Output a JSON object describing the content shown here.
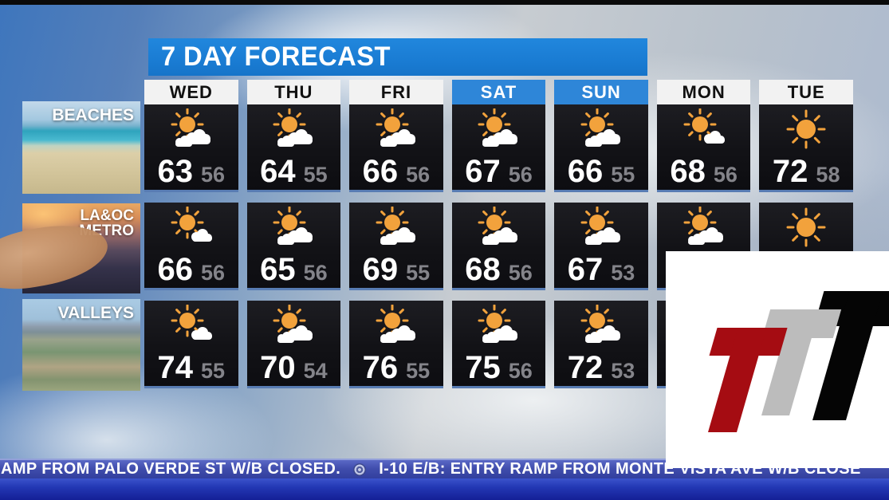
{
  "banner": {
    "title": "7 DAY FORECAST"
  },
  "days": [
    {
      "label": "WED",
      "highlighted": false
    },
    {
      "label": "THU",
      "highlighted": false
    },
    {
      "label": "FRI",
      "highlighted": false
    },
    {
      "label": "SAT",
      "highlighted": true
    },
    {
      "label": "SUN",
      "highlighted": true
    },
    {
      "label": "MON",
      "highlighted": false
    },
    {
      "label": "TUE",
      "highlighted": false
    }
  ],
  "regions": [
    {
      "id": "beaches",
      "label_lines": [
        "BEACHES"
      ],
      "cells": [
        {
          "icon": "partly-cloudy",
          "hi": "63",
          "lo": "56"
        },
        {
          "icon": "partly-cloudy",
          "hi": "64",
          "lo": "55"
        },
        {
          "icon": "partly-cloudy",
          "hi": "66",
          "lo": "56"
        },
        {
          "icon": "partly-cloudy",
          "hi": "67",
          "lo": "56"
        },
        {
          "icon": "partly-cloudy",
          "hi": "66",
          "lo": "55"
        },
        {
          "icon": "mostly-sunny",
          "hi": "68",
          "lo": "56"
        },
        {
          "icon": "sunny",
          "hi": "72",
          "lo": "58"
        }
      ]
    },
    {
      "id": "metro",
      "label_lines": [
        "LA&OC",
        "METRO"
      ],
      "cells": [
        {
          "icon": "mostly-sunny",
          "hi": "66",
          "lo": "56"
        },
        {
          "icon": "partly-cloudy",
          "hi": "65",
          "lo": "56"
        },
        {
          "icon": "partly-cloudy",
          "hi": "69",
          "lo": "55"
        },
        {
          "icon": "partly-cloudy",
          "hi": "68",
          "lo": "56"
        },
        {
          "icon": "partly-cloudy",
          "hi": "67",
          "lo": "53"
        },
        {
          "icon": "partly-cloudy",
          "hi": "",
          "lo": ""
        },
        {
          "icon": "sunny",
          "hi": "",
          "lo": ""
        }
      ]
    },
    {
      "id": "valleys",
      "label_lines": [
        "VALLEYS"
      ],
      "cells": [
        {
          "icon": "mostly-sunny",
          "hi": "74",
          "lo": "55"
        },
        {
          "icon": "partly-cloudy",
          "hi": "70",
          "lo": "54"
        },
        {
          "icon": "partly-cloudy",
          "hi": "76",
          "lo": "55"
        },
        {
          "icon": "partly-cloudy",
          "hi": "75",
          "lo": "56"
        },
        {
          "icon": "partly-cloudy",
          "hi": "72",
          "lo": "53"
        },
        {
          "icon": "",
          "hi": "",
          "lo": ""
        },
        {
          "icon": "",
          "hi": "",
          "lo": ""
        }
      ]
    }
  ],
  "ticker": {
    "segment_1": "AMP FROM PALO VERDE ST W/B CLOSED.",
    "separator_icon": "cbs-eye-icon",
    "segment_2": "I-10 E/B: ENTRY RAMP FROM MONTE VISTA AVE W/B CLOSE"
  },
  "logo_overlay": {
    "letters": [
      {
        "glyph": "T",
        "color": "#a50c12"
      },
      {
        "glyph": "T",
        "color": "#bcbcbc"
      },
      {
        "glyph": "T",
        "color": "#050505"
      }
    ]
  },
  "colors": {
    "banner_blue": "#1b7ed5",
    "day_highlight_blue": "#2e86d8",
    "cell_bg": "#131316",
    "hi_temp": "#ffffff",
    "lo_temp": "#84848a",
    "sun_orange": "#f2a23c",
    "ticker_blue": "#2338b4"
  },
  "chart_data": {
    "type": "table",
    "title": "7 DAY FORECAST",
    "columns": [
      "WED",
      "THU",
      "FRI",
      "SAT",
      "SUN",
      "MON",
      "TUE"
    ],
    "rows": [
      {
        "region": "BEACHES",
        "hi": [
          63,
          64,
          66,
          67,
          66,
          68,
          72
        ],
        "lo": [
          56,
          55,
          56,
          56,
          55,
          56,
          58
        ]
      },
      {
        "region": "LA&OC METRO",
        "hi": [
          66,
          65,
          69,
          68,
          67,
          null,
          null
        ],
        "lo": [
          56,
          56,
          55,
          56,
          53,
          null,
          null
        ]
      },
      {
        "region": "VALLEYS",
        "hi": [
          74,
          70,
          76,
          75,
          72,
          null,
          null
        ],
        "lo": [
          55,
          54,
          55,
          56,
          53,
          null,
          null
        ]
      }
    ],
    "layout_hints": "MON/TUE values for Metro and Valleys rows are hidden behind a white logo overlay; SAT and SUN column headers highlighted blue"
  }
}
